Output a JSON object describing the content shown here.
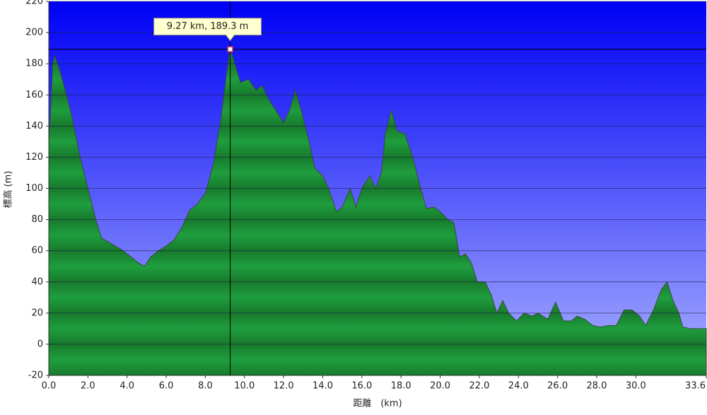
{
  "chart_data": {
    "type": "area",
    "x_label": "距離　(km)",
    "y_label": "標高 (m)",
    "x": [
      0.0,
      0.1,
      0.2,
      0.3,
      0.5,
      0.8,
      1.2,
      1.6,
      2.0,
      2.4,
      2.7,
      3.0,
      3.4,
      3.8,
      4.2,
      4.6,
      4.9,
      5.2,
      5.6,
      6.0,
      6.4,
      6.8,
      7.2,
      7.6,
      8.0,
      8.4,
      8.8,
      9.1,
      9.27,
      9.5,
      9.8,
      10.2,
      10.6,
      10.9,
      11.2,
      11.6,
      12.0,
      12.3,
      12.6,
      12.9,
      13.3,
      13.6,
      14.0,
      14.3,
      14.7,
      15.0,
      15.4,
      15.7,
      16.0,
      16.4,
      16.7,
      17.0,
      17.2,
      17.5,
      17.8,
      18.2,
      18.6,
      19.0,
      19.3,
      19.7,
      20.0,
      20.4,
      20.7,
      21.0,
      21.3,
      21.6,
      21.9,
      22.3,
      22.6,
      22.9,
      23.2,
      23.5,
      23.9,
      24.3,
      24.7,
      25.0,
      25.5,
      25.9,
      26.3,
      26.7,
      27.0,
      27.4,
      27.8,
      28.2,
      28.6,
      29.0,
      29.4,
      29.8,
      30.2,
      30.5,
      30.9,
      31.3,
      31.6,
      31.9,
      32.2,
      32.4,
      32.8,
      33.2,
      33.6
    ],
    "values": [
      130,
      150,
      180,
      185,
      178,
      165,
      145,
      120,
      100,
      80,
      68,
      66,
      63,
      60,
      56,
      52,
      50,
      56,
      60,
      63,
      67,
      75,
      86,
      90,
      97,
      115,
      145,
      175,
      189.3,
      180,
      168,
      170,
      163,
      166,
      158,
      150,
      142,
      150,
      163,
      150,
      130,
      113,
      108,
      100,
      85,
      88,
      100,
      88,
      100,
      108,
      100,
      110,
      135,
      150,
      137,
      135,
      120,
      100,
      87,
      88,
      85,
      80,
      78,
      56,
      58,
      52,
      40,
      40,
      32,
      20,
      28,
      20,
      15,
      20,
      18,
      20,
      16,
      27,
      15,
      15,
      18,
      16,
      12,
      11,
      12,
      12,
      22,
      22,
      18,
      12,
      22,
      35,
      40,
      28,
      20,
      11,
      10,
      10,
      10
    ],
    "color": "#1f9e3e",
    "xlim": [
      0,
      33.6
    ],
    "ylim": [
      -20,
      220
    ],
    "xticks": [
      {
        "value": 0,
        "label": "0.0"
      },
      {
        "value": 2,
        "label": "2.0"
      },
      {
        "value": 4,
        "label": "4.0"
      },
      {
        "value": 6,
        "label": "6.0"
      },
      {
        "value": 8,
        "label": "8.0"
      },
      {
        "value": 10,
        "label": "10.0"
      },
      {
        "value": 12,
        "label": "12.0"
      },
      {
        "value": 14,
        "label": "14.0"
      },
      {
        "value": 16,
        "label": "16.0"
      },
      {
        "value": 18,
        "label": "18.0"
      },
      {
        "value": 20,
        "label": "20.0"
      },
      {
        "value": 22,
        "label": "22.0"
      },
      {
        "value": 24,
        "label": "24.0"
      },
      {
        "value": 26,
        "label": "26.0"
      },
      {
        "value": 28,
        "label": "28.0"
      },
      {
        "value": 30,
        "label": "30.0"
      },
      {
        "value": 33.6,
        "label": "33.6"
      }
    ],
    "yticks": [
      -20,
      0,
      20,
      40,
      60,
      80,
      100,
      120,
      140,
      160,
      180,
      200,
      220
    ],
    "grid": true,
    "annotation": {
      "text": "9.27 km, 189.3 m",
      "x": 9.27,
      "y": 189.3
    }
  }
}
